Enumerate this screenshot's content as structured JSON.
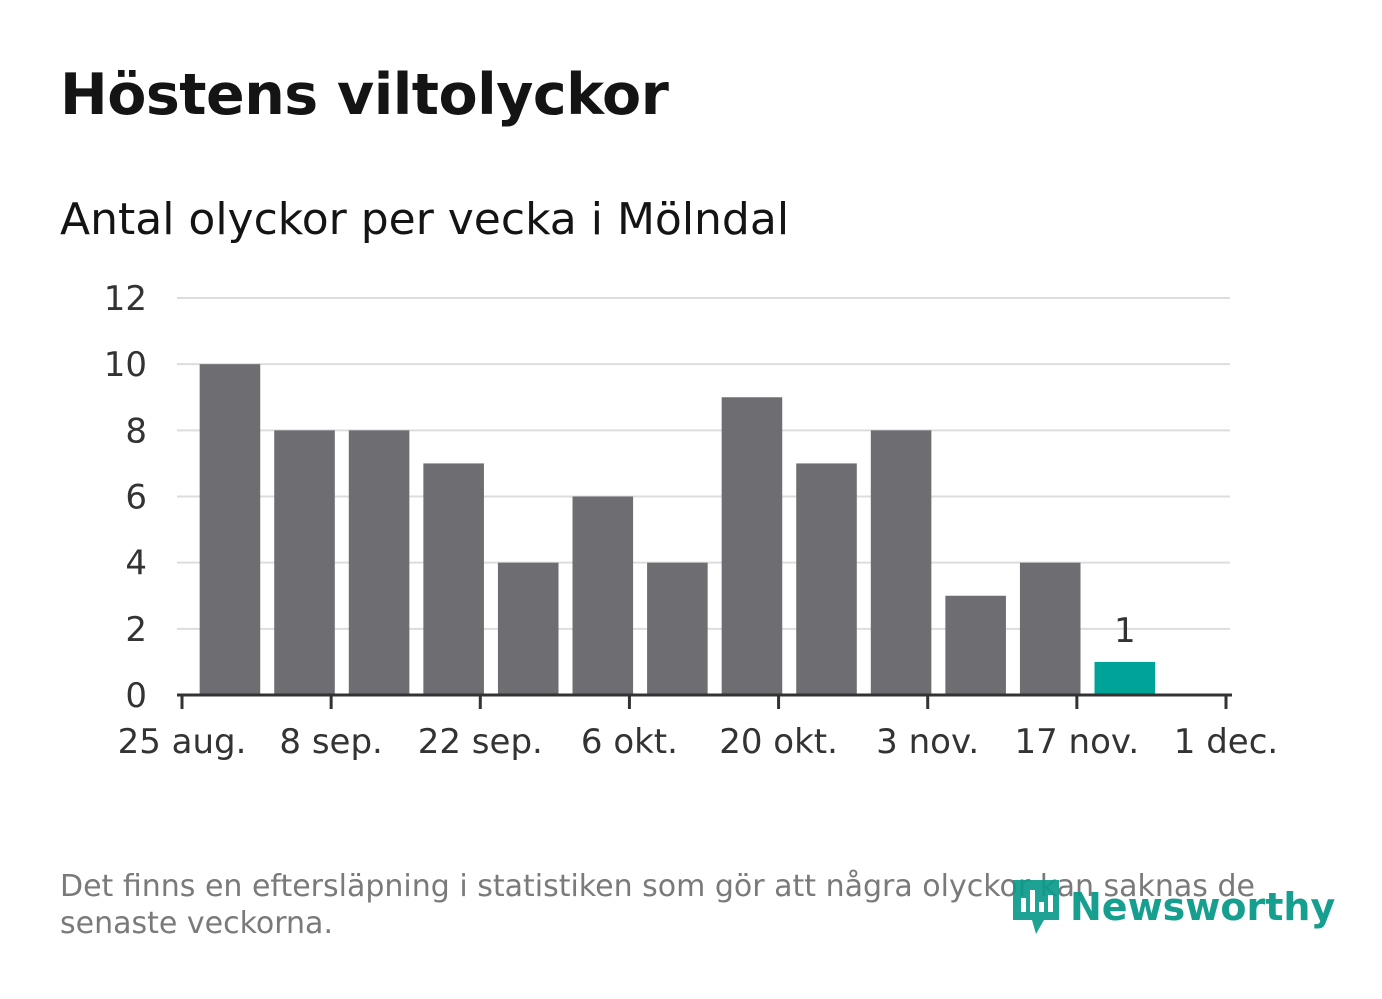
{
  "title": "Höstens viltolyckor",
  "subtitle": "Antal olyckor per vecka i Mölndal",
  "note": "Det finns en eftersläpning i statistiken som gör att några olyckor kan saknas de senaste veckorna.",
  "logo": {
    "text": "Newsworthy",
    "icon": "newsworthy-logo-icon"
  },
  "colors": {
    "bar": "#6e6d72",
    "highlight": "#00a398",
    "grid": "#dddddd",
    "axis": "#333333",
    "brand": "#0a9a8a"
  },
  "chart_data": {
    "type": "bar",
    "title": "Antal olyckor per vecka i Mölndal",
    "xlabel": "",
    "ylabel": "",
    "x": [
      "2024-08-26",
      "2024-09-02",
      "2024-09-09",
      "2024-09-16",
      "2024-09-23",
      "2024-09-30",
      "2024-10-07",
      "2024-10-14",
      "2024-10-21",
      "2024-10-28",
      "2024-11-04",
      "2024-11-11",
      "2024-11-18"
    ],
    "values": [
      10,
      8,
      8,
      7,
      4,
      6,
      4,
      9,
      7,
      8,
      3,
      4,
      1
    ],
    "highlight_index": 12,
    "data_labels": [
      {
        "index": 12,
        "text": "1"
      }
    ],
    "ylim": [
      0,
      12
    ],
    "yticks": [
      "0",
      "2",
      "4",
      "6",
      "8",
      "10",
      "12"
    ],
    "xlim": [
      "2024-08-25",
      "2024-12-01"
    ],
    "xticks": [
      {
        "date": "2024-08-25",
        "label": "25 aug."
      },
      {
        "date": "2024-09-08",
        "label": "8 sep."
      },
      {
        "date": "2024-09-22",
        "label": "22 sep."
      },
      {
        "date": "2024-10-06",
        "label": "6 okt."
      },
      {
        "date": "2024-10-20",
        "label": "20 okt."
      },
      {
        "date": "2024-11-03",
        "label": "3 nov."
      },
      {
        "date": "2024-11-17",
        "label": "17 nov."
      },
      {
        "date": "2024-12-01",
        "label": "1 dec."
      }
    ],
    "grid": true,
    "legend": "none"
  }
}
